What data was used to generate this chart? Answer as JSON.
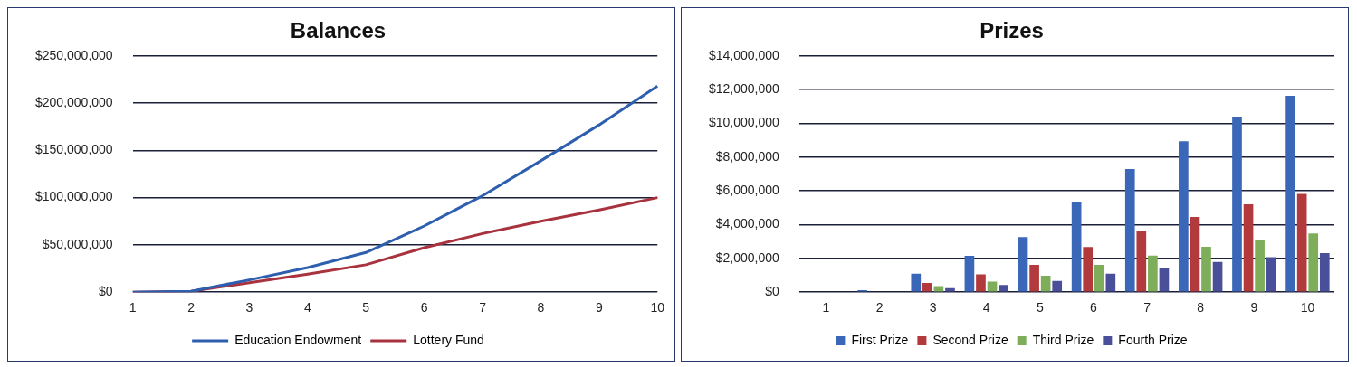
{
  "chart_data": [
    {
      "type": "line",
      "title": "Balances",
      "categories": [
        "1",
        "2",
        "3",
        "4",
        "5",
        "6",
        "7",
        "8",
        "9",
        "10"
      ],
      "series": [
        {
          "name": "Education Endowment",
          "color": "#2e5fae",
          "values": [
            0,
            1000000,
            13000000,
            26000000,
            42000000,
            70000000,
            102000000,
            139000000,
            177000000,
            218000000
          ]
        },
        {
          "name": "Lottery Fund",
          "color": "#a8323e",
          "values": [
            0,
            1000000,
            10000000,
            19000000,
            29000000,
            47000000,
            62000000,
            75000000,
            87000000,
            100000000
          ]
        }
      ],
      "ylim": [
        0,
        250000000
      ],
      "yticks": [
        {
          "value": 0,
          "label": "$0"
        },
        {
          "value": 50000000,
          "label": "$50,000,000"
        },
        {
          "value": 100000000,
          "label": "$100,000,000"
        },
        {
          "value": 150000000,
          "label": "$150,000,000"
        },
        {
          "value": 200000000,
          "label": "$200,000,000"
        },
        {
          "value": 250000000,
          "label": "$250,000,000"
        }
      ],
      "grid": "y",
      "legend": "bottom",
      "marker": "none",
      "line_style": "solid"
    },
    {
      "type": "bar",
      "title": "Prizes",
      "categories": [
        "1",
        "2",
        "3",
        "4",
        "5",
        "6",
        "7",
        "8",
        "9",
        "10"
      ],
      "series": [
        {
          "name": "First Prize",
          "color": "#3a67b7",
          "values": [
            0,
            120000,
            1100000,
            2150000,
            3270000,
            5360000,
            7300000,
            8940000,
            10400000,
            11630000
          ]
        },
        {
          "name": "Second Prize",
          "color": "#b23a3c",
          "values": [
            0,
            null,
            550000,
            1050000,
            1620000,
            2670000,
            3600000,
            4460000,
            5200000,
            5820000
          ]
        },
        {
          "name": "Third Prize",
          "color": "#7fae5a",
          "values": [
            0,
            null,
            360000,
            620000,
            980000,
            1620000,
            2170000,
            2690000,
            3120000,
            3480000
          ]
        },
        {
          "name": "Fourth Prize",
          "color": "#4a4f9a",
          "values": [
            0,
            null,
            240000,
            430000,
            670000,
            1100000,
            1450000,
            1790000,
            2070000,
            2310000
          ]
        }
      ],
      "ylim": [
        0,
        14000000
      ],
      "yticks": [
        {
          "value": 0,
          "label": "$0"
        },
        {
          "value": 2000000,
          "label": "$2,000,000"
        },
        {
          "value": 4000000,
          "label": "$4,000,000"
        },
        {
          "value": 6000000,
          "label": "$6,000,000"
        },
        {
          "value": 8000000,
          "label": "$8,000,000"
        },
        {
          "value": 10000000,
          "label": "$10,000,000"
        },
        {
          "value": 12000000,
          "label": "$12,000,000"
        },
        {
          "value": 14000000,
          "label": "$14,000,000"
        }
      ],
      "grid": "y",
      "legend": "bottom"
    }
  ]
}
